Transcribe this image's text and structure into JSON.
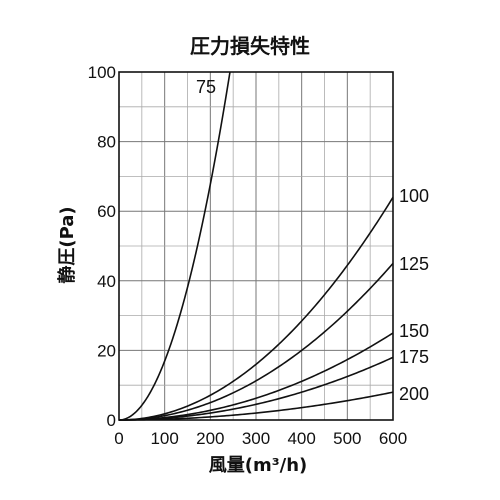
{
  "chart_data": {
    "type": "line",
    "title": "圧力損失特性",
    "xlabel": "風量(m³/h)",
    "ylabel": "静圧(Pa)",
    "xlim": [
      0,
      600
    ],
    "ylim": [
      0,
      100
    ],
    "x_ticks": [
      "0",
      "100",
      "200",
      "300",
      "400",
      "500",
      "600"
    ],
    "y_ticks": [
      "0",
      "20",
      "40",
      "60",
      "80",
      "100"
    ],
    "grid": true,
    "series": [
      {
        "name": "75",
        "x": [
          0,
          50,
          100,
          150,
          200,
          230,
          243
        ],
        "y": [
          0,
          4.2,
          16.9,
          38.1,
          67.7,
          89.6,
          100
        ]
      },
      {
        "name": "100",
        "x": [
          0,
          100,
          200,
          300,
          400,
          500,
          600
        ],
        "y": [
          0,
          1.8,
          7.1,
          16,
          28.4,
          44.4,
          64
        ]
      },
      {
        "name": "125",
        "x": [
          0,
          100,
          200,
          300,
          400,
          500,
          600
        ],
        "y": [
          0,
          1.3,
          5,
          11.3,
          20,
          31.3,
          45
        ]
      },
      {
        "name": "150",
        "x": [
          0,
          100,
          200,
          300,
          400,
          500,
          600
        ],
        "y": [
          0,
          0.7,
          2.8,
          6.3,
          11.1,
          17.4,
          25
        ]
      },
      {
        "name": "175",
        "x": [
          0,
          100,
          200,
          300,
          400,
          500,
          600
        ],
        "y": [
          0,
          0.5,
          2,
          4.5,
          8,
          12.5,
          18
        ]
      },
      {
        "name": "200",
        "x": [
          0,
          100,
          200,
          300,
          400,
          500,
          600
        ],
        "y": [
          0,
          0.2,
          0.9,
          2,
          3.6,
          5.6,
          8
        ]
      }
    ]
  }
}
